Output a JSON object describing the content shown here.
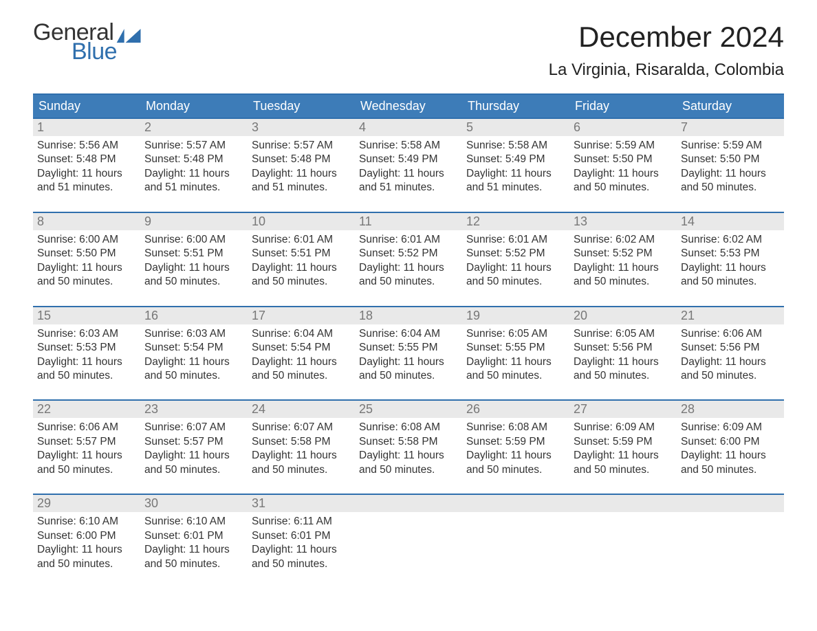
{
  "brand": {
    "word1": "General",
    "word2": "Blue",
    "text_color": "#333333",
    "blue_color": "#2f6fad"
  },
  "title": "December 2024",
  "location": "La Virginia, Risaralda, Colombia",
  "weekdays": [
    "Sunday",
    "Monday",
    "Tuesday",
    "Wednesday",
    "Thursday",
    "Friday",
    "Saturday"
  ],
  "colors": {
    "header_bg": "#3d7cb8",
    "header_text": "#ffffff",
    "rule": "#2f6fad",
    "daynum_bg": "#e9e9e9",
    "daynum_text": "#777777",
    "body_text": "#333333",
    "background": "#ffffff"
  },
  "typography": {
    "title_fontsize": 42,
    "location_fontsize": 24,
    "weekday_fontsize": 18,
    "daynum_fontsize": 18,
    "cell_fontsize": 15.5,
    "logo_fontsize": 34
  },
  "layout": {
    "columns": 7,
    "rows": 5,
    "cell_padding": 6,
    "week_gap": 24
  },
  "weeks": [
    [
      {
        "n": "1",
        "sunrise": "Sunrise: 5:56 AM",
        "sunset": "Sunset: 5:48 PM",
        "d1": "Daylight: 11 hours",
        "d2": "and 51 minutes."
      },
      {
        "n": "2",
        "sunrise": "Sunrise: 5:57 AM",
        "sunset": "Sunset: 5:48 PM",
        "d1": "Daylight: 11 hours",
        "d2": "and 51 minutes."
      },
      {
        "n": "3",
        "sunrise": "Sunrise: 5:57 AM",
        "sunset": "Sunset: 5:48 PM",
        "d1": "Daylight: 11 hours",
        "d2": "and 51 minutes."
      },
      {
        "n": "4",
        "sunrise": "Sunrise: 5:58 AM",
        "sunset": "Sunset: 5:49 PM",
        "d1": "Daylight: 11 hours",
        "d2": "and 51 minutes."
      },
      {
        "n": "5",
        "sunrise": "Sunrise: 5:58 AM",
        "sunset": "Sunset: 5:49 PM",
        "d1": "Daylight: 11 hours",
        "d2": "and 51 minutes."
      },
      {
        "n": "6",
        "sunrise": "Sunrise: 5:59 AM",
        "sunset": "Sunset: 5:50 PM",
        "d1": "Daylight: 11 hours",
        "d2": "and 50 minutes."
      },
      {
        "n": "7",
        "sunrise": "Sunrise: 5:59 AM",
        "sunset": "Sunset: 5:50 PM",
        "d1": "Daylight: 11 hours",
        "d2": "and 50 minutes."
      }
    ],
    [
      {
        "n": "8",
        "sunrise": "Sunrise: 6:00 AM",
        "sunset": "Sunset: 5:50 PM",
        "d1": "Daylight: 11 hours",
        "d2": "and 50 minutes."
      },
      {
        "n": "9",
        "sunrise": "Sunrise: 6:00 AM",
        "sunset": "Sunset: 5:51 PM",
        "d1": "Daylight: 11 hours",
        "d2": "and 50 minutes."
      },
      {
        "n": "10",
        "sunrise": "Sunrise: 6:01 AM",
        "sunset": "Sunset: 5:51 PM",
        "d1": "Daylight: 11 hours",
        "d2": "and 50 minutes."
      },
      {
        "n": "11",
        "sunrise": "Sunrise: 6:01 AM",
        "sunset": "Sunset: 5:52 PM",
        "d1": "Daylight: 11 hours",
        "d2": "and 50 minutes."
      },
      {
        "n": "12",
        "sunrise": "Sunrise: 6:01 AM",
        "sunset": "Sunset: 5:52 PM",
        "d1": "Daylight: 11 hours",
        "d2": "and 50 minutes."
      },
      {
        "n": "13",
        "sunrise": "Sunrise: 6:02 AM",
        "sunset": "Sunset: 5:52 PM",
        "d1": "Daylight: 11 hours",
        "d2": "and 50 minutes."
      },
      {
        "n": "14",
        "sunrise": "Sunrise: 6:02 AM",
        "sunset": "Sunset: 5:53 PM",
        "d1": "Daylight: 11 hours",
        "d2": "and 50 minutes."
      }
    ],
    [
      {
        "n": "15",
        "sunrise": "Sunrise: 6:03 AM",
        "sunset": "Sunset: 5:53 PM",
        "d1": "Daylight: 11 hours",
        "d2": "and 50 minutes."
      },
      {
        "n": "16",
        "sunrise": "Sunrise: 6:03 AM",
        "sunset": "Sunset: 5:54 PM",
        "d1": "Daylight: 11 hours",
        "d2": "and 50 minutes."
      },
      {
        "n": "17",
        "sunrise": "Sunrise: 6:04 AM",
        "sunset": "Sunset: 5:54 PM",
        "d1": "Daylight: 11 hours",
        "d2": "and 50 minutes."
      },
      {
        "n": "18",
        "sunrise": "Sunrise: 6:04 AM",
        "sunset": "Sunset: 5:55 PM",
        "d1": "Daylight: 11 hours",
        "d2": "and 50 minutes."
      },
      {
        "n": "19",
        "sunrise": "Sunrise: 6:05 AM",
        "sunset": "Sunset: 5:55 PM",
        "d1": "Daylight: 11 hours",
        "d2": "and 50 minutes."
      },
      {
        "n": "20",
        "sunrise": "Sunrise: 6:05 AM",
        "sunset": "Sunset: 5:56 PM",
        "d1": "Daylight: 11 hours",
        "d2": "and 50 minutes."
      },
      {
        "n": "21",
        "sunrise": "Sunrise: 6:06 AM",
        "sunset": "Sunset: 5:56 PM",
        "d1": "Daylight: 11 hours",
        "d2": "and 50 minutes."
      }
    ],
    [
      {
        "n": "22",
        "sunrise": "Sunrise: 6:06 AM",
        "sunset": "Sunset: 5:57 PM",
        "d1": "Daylight: 11 hours",
        "d2": "and 50 minutes."
      },
      {
        "n": "23",
        "sunrise": "Sunrise: 6:07 AM",
        "sunset": "Sunset: 5:57 PM",
        "d1": "Daylight: 11 hours",
        "d2": "and 50 minutes."
      },
      {
        "n": "24",
        "sunrise": "Sunrise: 6:07 AM",
        "sunset": "Sunset: 5:58 PM",
        "d1": "Daylight: 11 hours",
        "d2": "and 50 minutes."
      },
      {
        "n": "25",
        "sunrise": "Sunrise: 6:08 AM",
        "sunset": "Sunset: 5:58 PM",
        "d1": "Daylight: 11 hours",
        "d2": "and 50 minutes."
      },
      {
        "n": "26",
        "sunrise": "Sunrise: 6:08 AM",
        "sunset": "Sunset: 5:59 PM",
        "d1": "Daylight: 11 hours",
        "d2": "and 50 minutes."
      },
      {
        "n": "27",
        "sunrise": "Sunrise: 6:09 AM",
        "sunset": "Sunset: 5:59 PM",
        "d1": "Daylight: 11 hours",
        "d2": "and 50 minutes."
      },
      {
        "n": "28",
        "sunrise": "Sunrise: 6:09 AM",
        "sunset": "Sunset: 6:00 PM",
        "d1": "Daylight: 11 hours",
        "d2": "and 50 minutes."
      }
    ],
    [
      {
        "n": "29",
        "sunrise": "Sunrise: 6:10 AM",
        "sunset": "Sunset: 6:00 PM",
        "d1": "Daylight: 11 hours",
        "d2": "and 50 minutes."
      },
      {
        "n": "30",
        "sunrise": "Sunrise: 6:10 AM",
        "sunset": "Sunset: 6:01 PM",
        "d1": "Daylight: 11 hours",
        "d2": "and 50 minutes."
      },
      {
        "n": "31",
        "sunrise": "Sunrise: 6:11 AM",
        "sunset": "Sunset: 6:01 PM",
        "d1": "Daylight: 11 hours",
        "d2": "and 50 minutes."
      },
      null,
      null,
      null,
      null
    ]
  ]
}
